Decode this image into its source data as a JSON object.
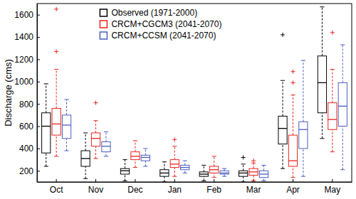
{
  "chart_data": {
    "type": "box",
    "y_label": "Discharge (cms)",
    "categories": [
      "Oct",
      "Nov",
      "Dec",
      "Jan",
      "Feb",
      "Mar",
      "Apr",
      "May"
    ],
    "ylim": [
      100,
      1700
    ],
    "yticks": [
      200,
      400,
      600,
      800,
      1000,
      1200,
      1400,
      1600
    ],
    "legend": "upper center",
    "grid": false,
    "series": [
      {
        "name": "Observed (1971-2000)",
        "color": "#000000",
        "low": [
          240,
          130,
          110,
          100,
          110,
          100,
          220,
          490
        ],
        "q1": [
          360,
          240,
          170,
          150,
          150,
          150,
          440,
          720
        ],
        "median": [
          600,
          310,
          200,
          180,
          170,
          180,
          580,
          990
        ],
        "q3": [
          720,
          380,
          220,
          210,
          190,
          200,
          690,
          1230
        ],
        "high": [
          980,
          540,
          300,
          280,
          250,
          260,
          1010,
          1670
        ],
        "outliers": [
          [],
          [],
          [],
          [],
          [],
          [
            320
          ],
          [
            1420
          ],
          []
        ]
      },
      {
        "name": "CRCM+CGCM3 (2041-2070)",
        "color": "#e8251d",
        "low": [
          330,
          310,
          230,
          150,
          140,
          110,
          140,
          370
        ],
        "q1": [
          520,
          420,
          300,
          230,
          180,
          160,
          240,
          570
        ],
        "median": [
          620,
          490,
          330,
          260,
          210,
          190,
          290,
          660
        ],
        "q3": [
          760,
          540,
          370,
          300,
          240,
          220,
          520,
          810
        ],
        "high": [
          1110,
          650,
          470,
          420,
          330,
          270,
          880,
          1110
        ],
        "outliers": [
          [
            1270,
            1650
          ],
          [
            810
          ],
          [],
          [
            480
          ],
          [],
          [
            290
          ],
          [
            990,
            1090
          ],
          [
            1440
          ]
        ]
      },
      {
        "name": "CRCM+CCSM (2041-2070)",
        "color": "#4a5fc1",
        "low": [
          380,
          330,
          240,
          180,
          150,
          110,
          150,
          210
        ],
        "q1": [
          490,
          370,
          290,
          210,
          170,
          140,
          400,
          600
        ],
        "median": [
          610,
          420,
          320,
          230,
          180,
          170,
          570,
          780
        ],
        "q3": [
          700,
          460,
          340,
          250,
          200,
          200,
          640,
          990
        ],
        "high": [
          840,
          550,
          400,
          290,
          220,
          250,
          1190,
          1330
        ],
        "outliers": [
          [],
          [],
          [],
          [],
          [],
          [],
          [],
          []
        ]
      }
    ]
  }
}
